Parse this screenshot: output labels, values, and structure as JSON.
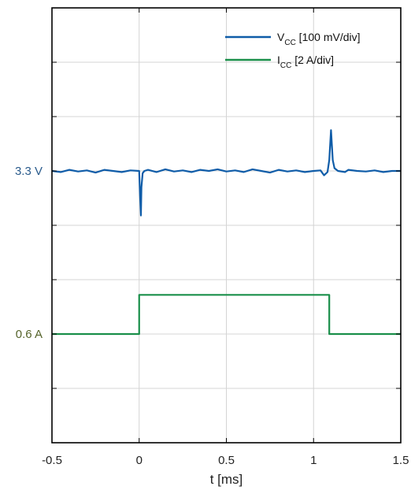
{
  "chart_data": {
    "type": "line",
    "title": "",
    "xlabel": "t [ms]",
    "ylabel": "",
    "xlim": [
      -0.5,
      1.5
    ],
    "ylim": [
      0,
      8
    ],
    "grid": true,
    "legend_position": "top-right",
    "x_ticks": [
      "-0.5",
      "0",
      "0.5",
      "1",
      "1.5"
    ],
    "level_labels": [
      {
        "text": "3.3 V",
        "y": 5,
        "color": "#2a5b8c"
      },
      {
        "text": "0.6 A",
        "y": 2,
        "color": "#55632a"
      }
    ],
    "series": [
      {
        "name_main": "V",
        "name_sub": "CC",
        "name_rest": " [100 mV/div]",
        "color": "#0f5ca8",
        "x": [
          -0.5,
          -0.45,
          -0.4,
          -0.35,
          -0.3,
          -0.25,
          -0.2,
          -0.15,
          -0.1,
          -0.05,
          0.0,
          0.005,
          0.01,
          0.013,
          0.02,
          0.03,
          0.05,
          0.1,
          0.15,
          0.2,
          0.25,
          0.3,
          0.35,
          0.4,
          0.45,
          0.5,
          0.55,
          0.6,
          0.65,
          0.7,
          0.75,
          0.8,
          0.85,
          0.9,
          0.95,
          1.0,
          1.04,
          1.06,
          1.08,
          1.09,
          1.1,
          1.11,
          1.12,
          1.14,
          1.18,
          1.2,
          1.25,
          1.3,
          1.35,
          1.4,
          1.45,
          1.5
        ],
        "values": [
          5.0,
          4.98,
          5.02,
          4.99,
          5.01,
          4.97,
          5.02,
          5.0,
          4.98,
          5.01,
          5.0,
          4.55,
          4.18,
          4.7,
          4.96,
          5.0,
          5.02,
          4.98,
          5.03,
          4.99,
          5.01,
          4.98,
          5.02,
          5.0,
          5.03,
          4.99,
          5.01,
          4.98,
          5.03,
          5.0,
          4.97,
          5.02,
          4.99,
          5.01,
          4.98,
          5.0,
          5.01,
          4.92,
          4.98,
          5.2,
          5.75,
          5.2,
          5.05,
          5.0,
          4.98,
          5.02,
          5.0,
          4.99,
          5.01,
          4.98,
          5.0,
          5.0
        ]
      },
      {
        "name_main": "I",
        "name_sub": "CC",
        "name_rest": " [2 A/div]",
        "color": "#1a8f4a",
        "x": [
          -0.5,
          0.0,
          0.0,
          1.09,
          1.09,
          1.5
        ],
        "values": [
          2.0,
          2.0,
          2.72,
          2.72,
          2.0,
          2.0
        ]
      }
    ]
  }
}
